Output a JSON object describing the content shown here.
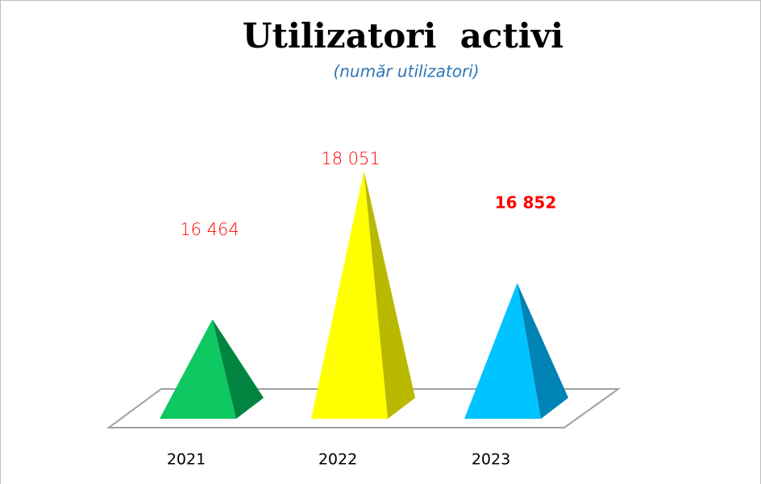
{
  "chart_data": {
    "type": "pyramid",
    "title": "Utilizatori  activi",
    "subtitle": "(număr utilizatori)",
    "categories": [
      "2021",
      "2022",
      "2023"
    ],
    "values": [
      16464,
      18051,
      16852
    ],
    "value_labels": [
      "16 464",
      "18 051",
      "16 852"
    ],
    "colors": [
      "#0ec862",
      "#ffff00",
      "#00c4ff"
    ],
    "side_colors": [
      "#00843f",
      "#b9b900",
      "#0083b5"
    ],
    "ylim": [
      15400,
      18200
    ]
  }
}
